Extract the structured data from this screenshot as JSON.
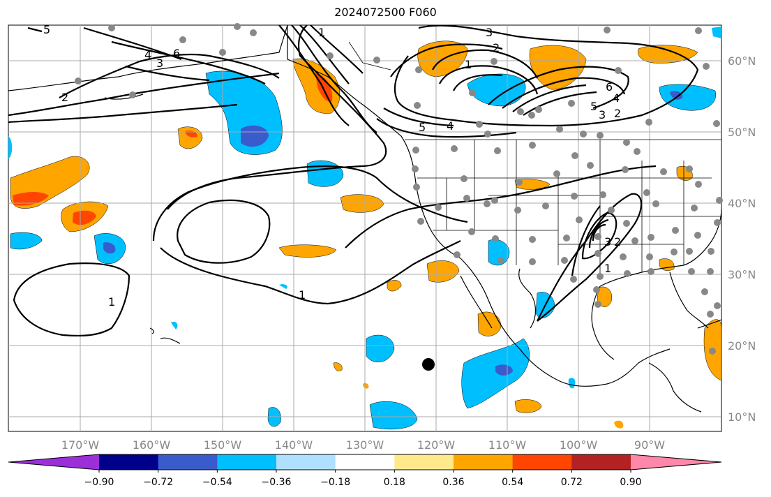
{
  "title": "2024072500 F060",
  "latitude_labels": [
    "60°N",
    "50°N",
    "40°N",
    "30°N",
    "20°N",
    "10°N"
  ],
  "longitude_labels": [
    "170°W",
    "160°W",
    "150°W",
    "140°W",
    "130°W",
    "120°W",
    "110°W",
    "100°W",
    "90°W"
  ],
  "colorbar": {
    "tick_labels": [
      "−0.90",
      "−0.72",
      "−0.54",
      "−0.36",
      "−0.18",
      "0.18",
      "0.36",
      "0.54",
      "0.72",
      "0.90"
    ],
    "colors": [
      "#9b30d9",
      "#00008b",
      "#3a5bcc",
      "#00bfff",
      "#b0e0ff",
      "#ffffff",
      "#ffe98a",
      "#ffa500",
      "#ff4500",
      "#b22222",
      "#ff88aa"
    ]
  },
  "contour_labels": [
    "1",
    "2",
    "3",
    "4",
    "5",
    "6"
  ],
  "colors": {
    "land_line": "#000000",
    "grid": "#aaaaaa",
    "station": "#888888",
    "marker": "#000000"
  }
}
